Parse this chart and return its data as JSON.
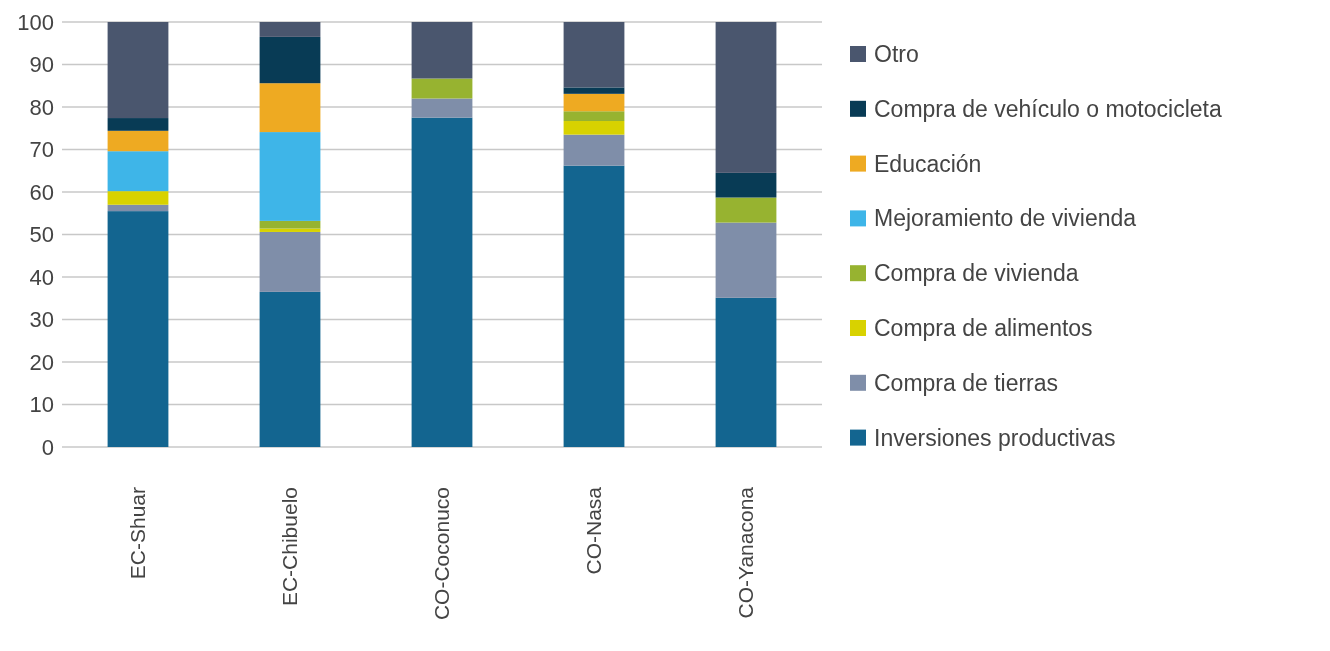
{
  "chart_data": {
    "type": "bar",
    "stacked": true,
    "categories": [
      "EC-Shuar",
      "EC-Chibuelo",
      "CO-Coconuco",
      "CO-Nasa",
      "CO-Yanacona"
    ],
    "series": [
      {
        "name": "Inversiones productivas",
        "color": "#136590",
        "values": [
          55.5,
          36.5,
          77.5,
          66.2,
          35.1
        ]
      },
      {
        "name": "Compra de tierras",
        "color": "#7f8ea9",
        "values": [
          1.5,
          14.1,
          4.5,
          7.3,
          17.7
        ]
      },
      {
        "name": "Compra de alimentos",
        "color": "#d8d200",
        "values": [
          3.2,
          0.8,
          0,
          3.2,
          0
        ]
      },
      {
        "name": "Compra de vivienda",
        "color": "#97b330",
        "values": [
          0,
          1.8,
          4.7,
          2.3,
          5.9
        ]
      },
      {
        "name": "Mejoramiento de vivienda",
        "color": "#3eb5e8",
        "values": [
          9.4,
          20.9,
          0,
          0,
          0
        ]
      },
      {
        "name": "Educación",
        "color": "#eeaa22",
        "values": [
          4.8,
          11.5,
          0,
          4.1,
          0
        ]
      },
      {
        "name": "Compra de vehículo o motocicleta",
        "color": "#083b55",
        "values": [
          3.0,
          10.9,
          0,
          1.5,
          5.8
        ]
      },
      {
        "name": "Otro",
        "color": "#4a566e",
        "values": [
          22.6,
          3.5,
          13.3,
          15.4,
          35.5
        ]
      }
    ],
    "ylim": [
      0,
      100
    ],
    "yticks": [
      0,
      10,
      20,
      30,
      40,
      50,
      60,
      70,
      80,
      90,
      100
    ],
    "grid": "y",
    "legend": "right"
  }
}
